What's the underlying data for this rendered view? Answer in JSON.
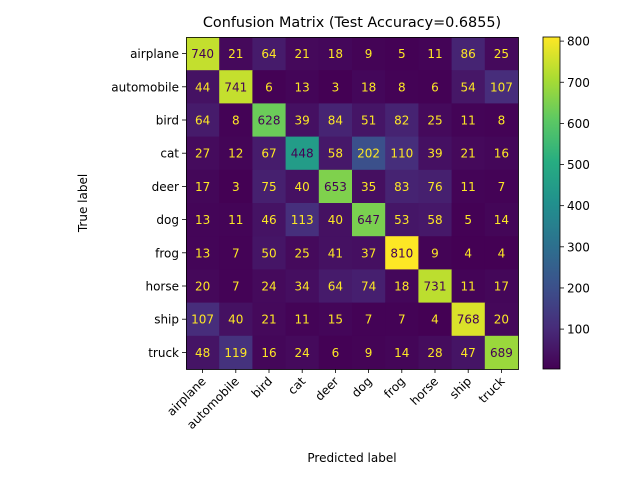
{
  "chart_data": {
    "type": "heatmap",
    "title": "Confusion Matrix (Test Accuracy=0.6855)",
    "xlabel": "Predicted label",
    "ylabel": "True label",
    "classes": [
      "airplane",
      "automobile",
      "bird",
      "cat",
      "deer",
      "dog",
      "frog",
      "horse",
      "ship",
      "truck"
    ],
    "matrix": [
      [
        740,
        21,
        64,
        21,
        18,
        9,
        5,
        11,
        86,
        25
      ],
      [
        44,
        741,
        6,
        13,
        3,
        18,
        8,
        6,
        54,
        107
      ],
      [
        64,
        8,
        628,
        39,
        84,
        51,
        82,
        25,
        11,
        8
      ],
      [
        27,
        12,
        67,
        448,
        58,
        202,
        110,
        39,
        21,
        16
      ],
      [
        17,
        3,
        75,
        40,
        653,
        35,
        83,
        76,
        11,
        7
      ],
      [
        13,
        11,
        46,
        113,
        40,
        647,
        53,
        58,
        5,
        14
      ],
      [
        13,
        7,
        50,
        25,
        41,
        37,
        810,
        9,
        4,
        4
      ],
      [
        20,
        7,
        24,
        34,
        64,
        74,
        18,
        731,
        11,
        17
      ],
      [
        107,
        40,
        21,
        11,
        15,
        7,
        7,
        4,
        768,
        20
      ],
      [
        48,
        119,
        16,
        24,
        6,
        9,
        14,
        28,
        47,
        689
      ]
    ],
    "colormap": "viridis",
    "colorbar": {
      "range": [
        3,
        810
      ],
      "ticks": [
        100,
        200,
        300,
        400,
        500,
        600,
        700,
        800
      ]
    }
  }
}
